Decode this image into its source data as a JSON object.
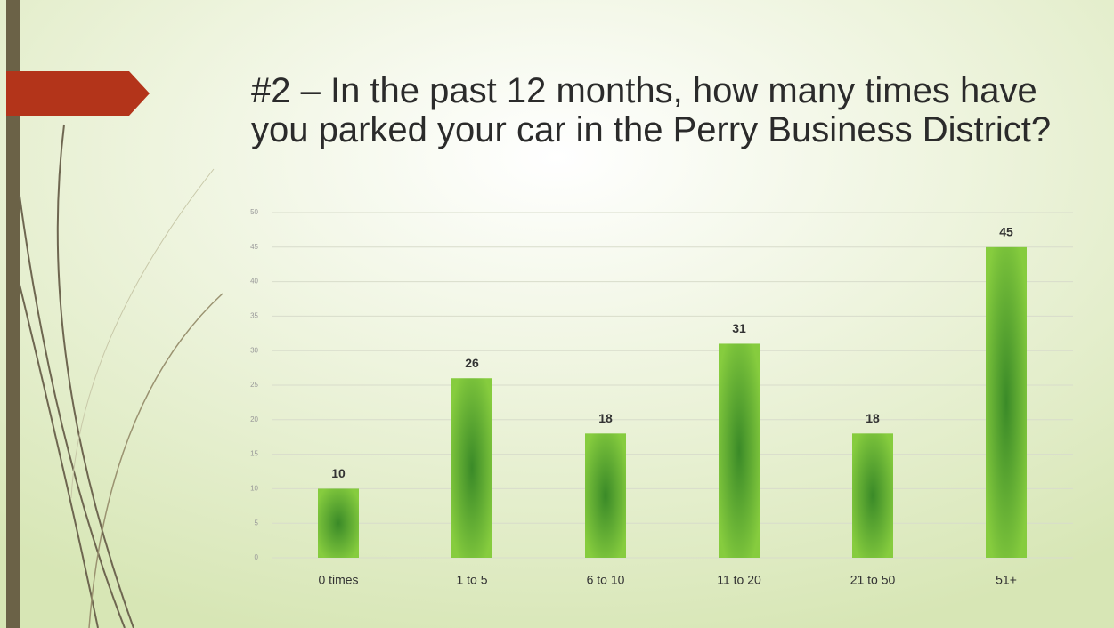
{
  "chart_data": {
    "type": "bar",
    "title": "#2 – In the past 12 months, how many times have you parked your car in the Perry Business District?",
    "categories": [
      "0 times",
      "1 to 5",
      "6 to 10",
      "11 to 20",
      "21 to 50",
      "51+"
    ],
    "values": [
      10,
      26,
      18,
      31,
      18,
      45
    ],
    "color": "#7cc43a",
    "ylim": [
      0,
      50
    ],
    "yticks": [
      0,
      5,
      10,
      15,
      20,
      25,
      30,
      35,
      40,
      45,
      50
    ],
    "grid": true
  }
}
